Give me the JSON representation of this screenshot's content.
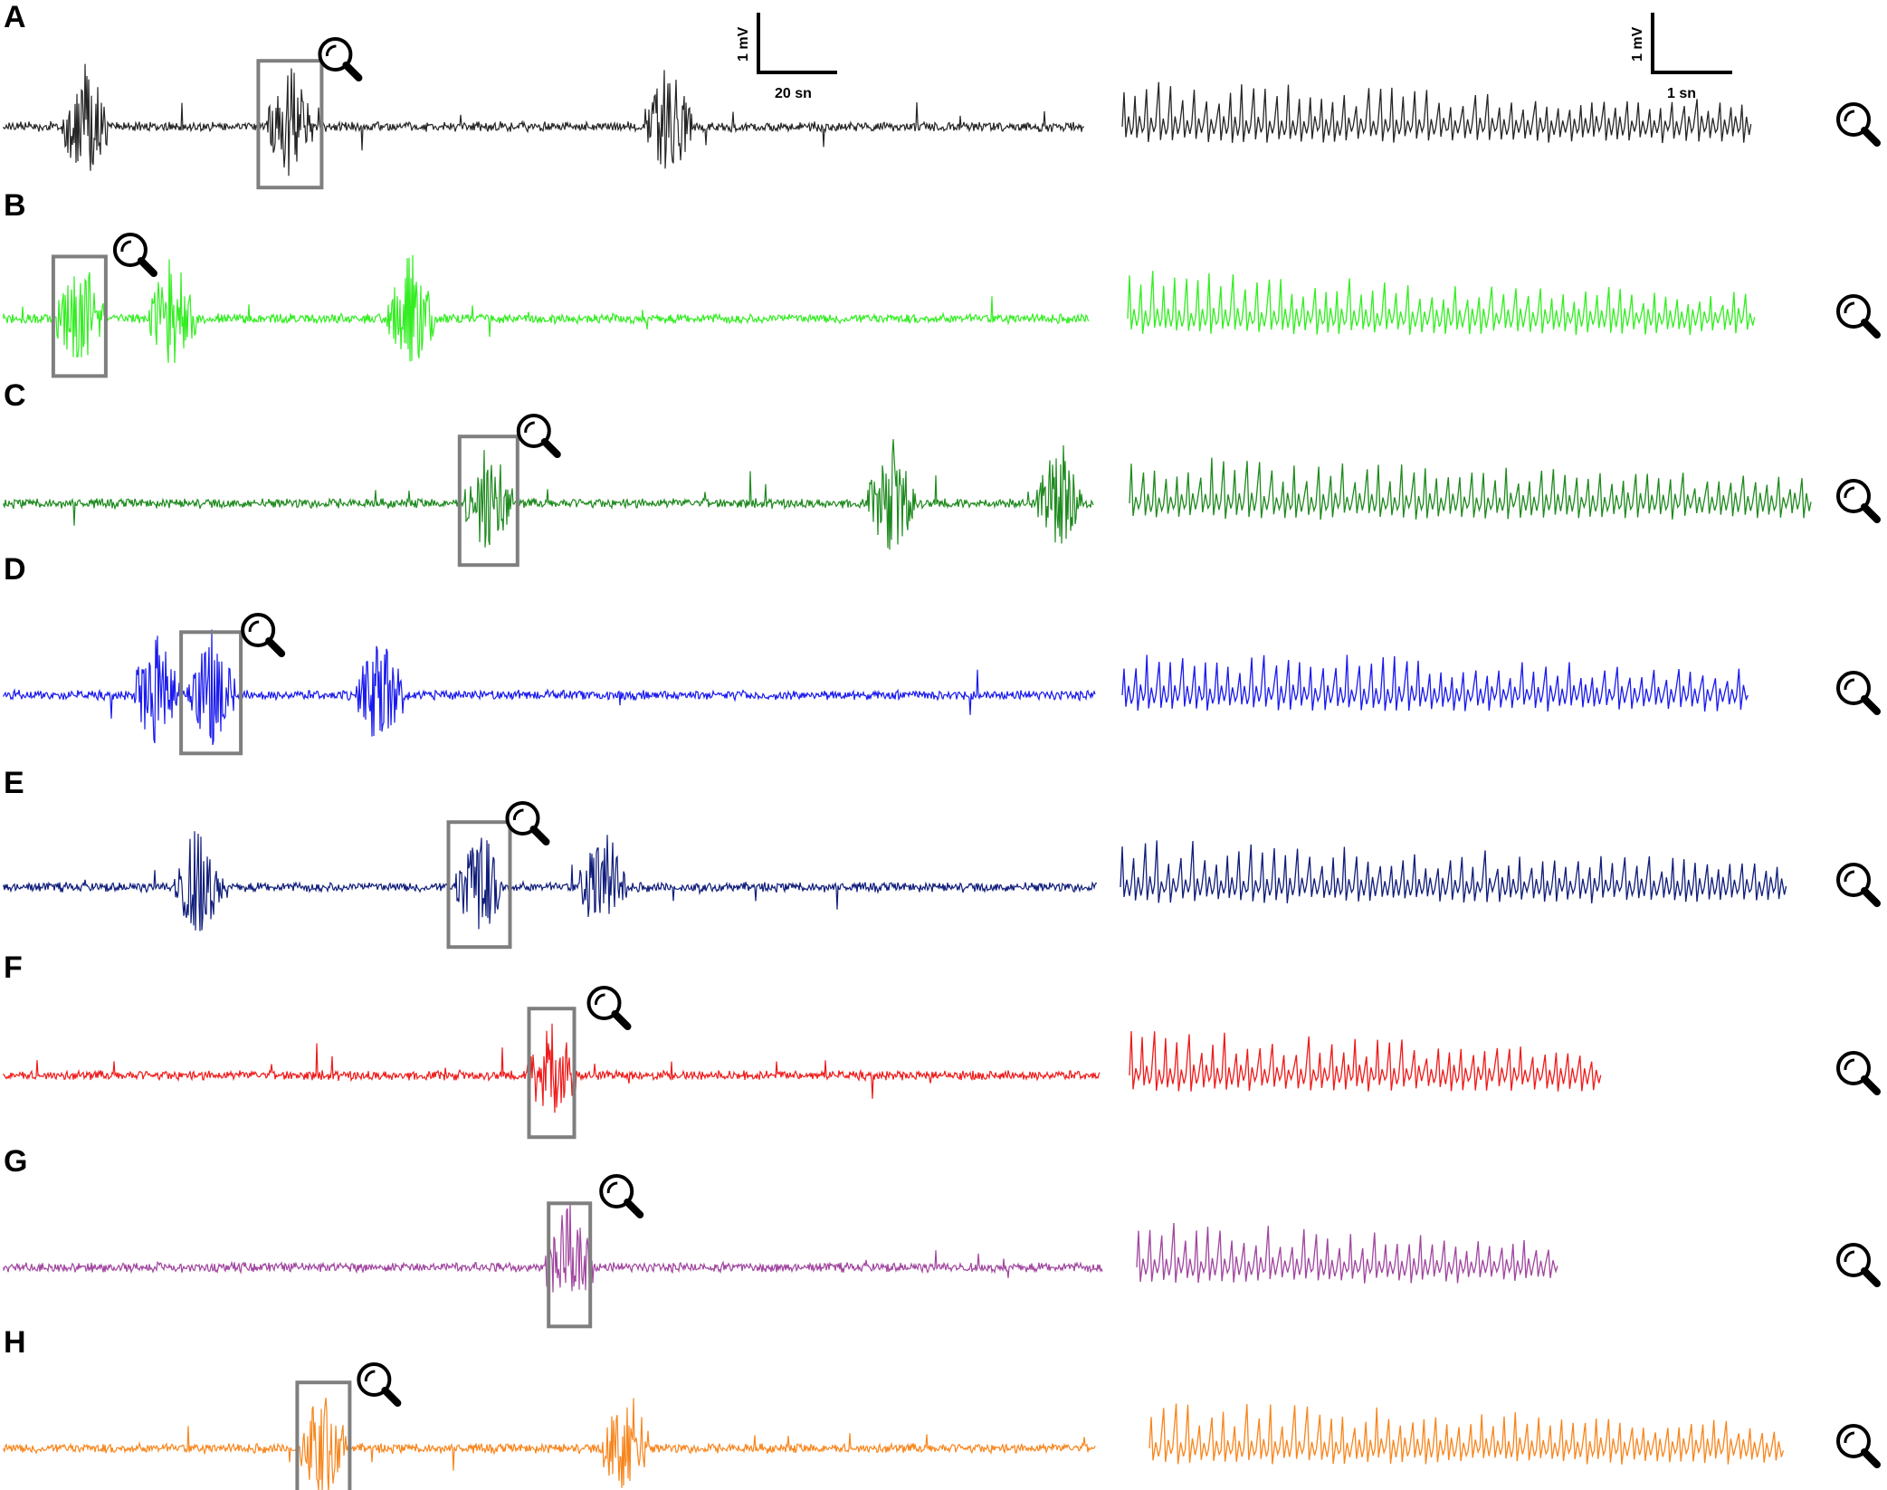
{
  "chart_data": {
    "type": "line",
    "description_units": "EEG-like field potential traces",
    "scale_bars": [
      {
        "id": "overview",
        "vertical_label": "1 mV",
        "horizontal_label": "20 sn"
      },
      {
        "id": "zoom",
        "vertical_label": "1 mV",
        "horizontal_label": "1 sn"
      }
    ],
    "panels": [
      {
        "label": "A",
        "color": "#262626",
        "bursts": [
          0.075,
          0.265,
          0.615
        ],
        "highlight": 1,
        "zoom_icon": "magnifier-icon"
      },
      {
        "label": "B",
        "color": "#33ee22",
        "bursts": [
          0.07,
          0.155,
          0.375
        ],
        "highlight": 0,
        "zoom_icon": "magnifier-icon"
      },
      {
        "label": "C",
        "color": "#1e8a1e",
        "bursts": [
          0.445,
          0.815,
          0.97
        ],
        "highlight": 0,
        "zoom_icon": "magnifier-icon"
      },
      {
        "label": "D",
        "color": "#1a1aee",
        "bursts": [
          0.14,
          0.19,
          0.345
        ],
        "highlight": 1,
        "zoom_icon": "magnifier-icon"
      },
      {
        "label": "E",
        "color": "#101d7a",
        "bursts": [
          0.178,
          0.435,
          0.548
        ],
        "highlight": 1,
        "zoom_icon": "magnifier-icon"
      },
      {
        "label": "F",
        "color": "#ee1b1b",
        "bursts": [
          0.5
        ],
        "highlight": 0,
        "zoom_icon": "magnifier-icon"
      },
      {
        "label": "G",
        "color": "#a0459f",
        "bursts": [
          0.515
        ],
        "highlight": 0,
        "zoom_icon": "magnifier-icon"
      },
      {
        "label": "H",
        "color": "#f7861e",
        "bursts": [
          0.293,
          0.57
        ],
        "highlight": 0,
        "zoom_icon": "magnifier-icon"
      }
    ]
  }
}
